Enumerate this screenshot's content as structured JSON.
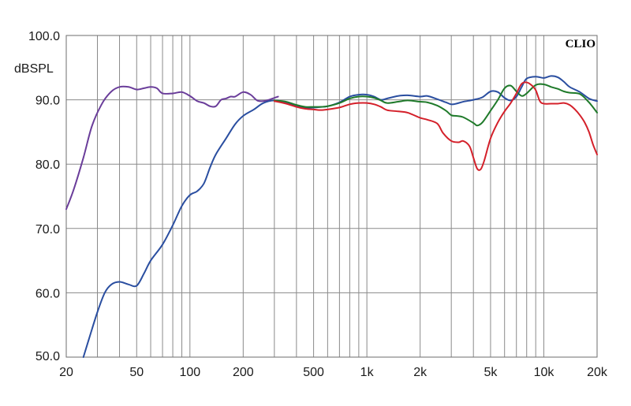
{
  "chart_data": {
    "type": "line",
    "brand": "CLIO",
    "ylabel": "dBSPL",
    "xlabel": "",
    "title": "",
    "x_scale": "log",
    "xlim": [
      20,
      20000
    ],
    "ylim": [
      50,
      100
    ],
    "grid": true,
    "x_ticks": [
      {
        "value": 20,
        "label": "20"
      },
      {
        "value": 50,
        "label": "50"
      },
      {
        "value": 100,
        "label": "100"
      },
      {
        "value": 200,
        "label": "200"
      },
      {
        "value": 500,
        "label": "500"
      },
      {
        "value": 1000,
        "label": "1k"
      },
      {
        "value": 2000,
        "label": "2k"
      },
      {
        "value": 5000,
        "label": "5k"
      },
      {
        "value": 10000,
        "label": "10k"
      },
      {
        "value": 20000,
        "label": "20k"
      }
    ],
    "y_ticks": [
      {
        "value": 50,
        "label": "50.0"
      },
      {
        "value": 60,
        "label": "60.0"
      },
      {
        "value": 70,
        "label": "70.0"
      },
      {
        "value": 80,
        "label": "80.0"
      },
      {
        "value": 90,
        "label": "90.0"
      },
      {
        "value": 100,
        "label": "100.0"
      }
    ],
    "series": [
      {
        "color": "#6a3d9a",
        "points": [
          [
            20,
            73
          ],
          [
            22,
            76
          ],
          [
            25,
            81
          ],
          [
            28,
            86
          ],
          [
            32,
            89.5
          ],
          [
            36,
            91.3
          ],
          [
            40,
            92
          ],
          [
            45,
            92
          ],
          [
            50,
            91.6
          ],
          [
            55,
            91.8
          ],
          [
            60,
            92
          ],
          [
            65,
            91.8
          ],
          [
            70,
            91
          ],
          [
            80,
            91
          ],
          [
            90,
            91.2
          ],
          [
            100,
            90.6
          ],
          [
            110,
            89.8
          ],
          [
            120,
            89.5
          ],
          [
            130,
            89
          ],
          [
            140,
            89
          ],
          [
            150,
            90
          ],
          [
            160,
            90.2
          ],
          [
            170,
            90.5
          ],
          [
            180,
            90.5
          ],
          [
            200,
            91.2
          ],
          [
            220,
            90.8
          ],
          [
            240,
            89.9
          ],
          [
            260,
            89.8
          ],
          [
            280,
            90
          ],
          [
            300,
            90.3
          ],
          [
            315,
            90.5
          ]
        ]
      },
      {
        "color": "#2a4ea0",
        "points": [
          [
            25,
            50
          ],
          [
            27,
            53
          ],
          [
            30,
            57
          ],
          [
            33,
            60
          ],
          [
            36,
            61.3
          ],
          [
            40,
            61.7
          ],
          [
            45,
            61.3
          ],
          [
            50,
            61.1
          ],
          [
            55,
            63
          ],
          [
            60,
            65
          ],
          [
            70,
            67.5
          ],
          [
            80,
            70.5
          ],
          [
            90,
            73.5
          ],
          [
            100,
            75.2
          ],
          [
            110,
            75.8
          ],
          [
            120,
            77
          ],
          [
            130,
            79.5
          ],
          [
            140,
            81.5
          ],
          [
            160,
            84
          ],
          [
            180,
            86.2
          ],
          [
            200,
            87.5
          ],
          [
            230,
            88.5
          ],
          [
            260,
            89.5
          ],
          [
            300,
            89.9
          ],
          [
            350,
            89.6
          ],
          [
            400,
            89.1
          ],
          [
            450,
            88.8
          ],
          [
            500,
            88.8
          ],
          [
            550,
            88.9
          ],
          [
            600,
            89
          ],
          [
            700,
            89.6
          ],
          [
            800,
            90.5
          ],
          [
            900,
            90.8
          ],
          [
            1000,
            90.8
          ],
          [
            1100,
            90.5
          ],
          [
            1200,
            90
          ],
          [
            1300,
            90.2
          ],
          [
            1500,
            90.6
          ],
          [
            1700,
            90.7
          ],
          [
            2000,
            90.5
          ],
          [
            2200,
            90.6
          ],
          [
            2500,
            90.1
          ],
          [
            2800,
            89.6
          ],
          [
            3000,
            89.3
          ],
          [
            3200,
            89.4
          ],
          [
            3500,
            89.7
          ],
          [
            4000,
            90
          ],
          [
            4500,
            90.4
          ],
          [
            5000,
            91.3
          ],
          [
            5500,
            91.2
          ],
          [
            6000,
            90.3
          ],
          [
            6500,
            89.9
          ],
          [
            7000,
            90.5
          ],
          [
            7500,
            92
          ],
          [
            8000,
            93.3
          ],
          [
            9000,
            93.6
          ],
          [
            10000,
            93.4
          ],
          [
            11000,
            93.7
          ],
          [
            12000,
            93.5
          ],
          [
            13000,
            92.8
          ],
          [
            14000,
            92
          ],
          [
            16000,
            91.2
          ],
          [
            18000,
            90.2
          ],
          [
            20000,
            89.8
          ]
        ]
      },
      {
        "color": "#1f7a2a",
        "points": [
          [
            300,
            89.9
          ],
          [
            350,
            89.7
          ],
          [
            400,
            89.2
          ],
          [
            450,
            88.9
          ],
          [
            500,
            88.9
          ],
          [
            550,
            88.9
          ],
          [
            600,
            89
          ],
          [
            700,
            89.5
          ],
          [
            800,
            90.2
          ],
          [
            900,
            90.5
          ],
          [
            1000,
            90.5
          ],
          [
            1100,
            90.3
          ],
          [
            1200,
            89.9
          ],
          [
            1300,
            89.5
          ],
          [
            1500,
            89.7
          ],
          [
            1700,
            89.9
          ],
          [
            2000,
            89.7
          ],
          [
            2200,
            89.6
          ],
          [
            2500,
            89.1
          ],
          [
            2800,
            88.3
          ],
          [
            3000,
            87.6
          ],
          [
            3200,
            87.5
          ],
          [
            3500,
            87.3
          ],
          [
            4000,
            86.4
          ],
          [
            4200,
            86
          ],
          [
            4500,
            86.5
          ],
          [
            5000,
            88.3
          ],
          [
            5500,
            90
          ],
          [
            6000,
            91.8
          ],
          [
            6500,
            92.2
          ],
          [
            7000,
            91.3
          ],
          [
            7500,
            90.6
          ],
          [
            8000,
            91
          ],
          [
            9000,
            92.3
          ],
          [
            10000,
            92.4
          ],
          [
            11000,
            92
          ],
          [
            12000,
            91.7
          ],
          [
            13000,
            91.3
          ],
          [
            14000,
            91.1
          ],
          [
            16000,
            90.9
          ],
          [
            18000,
            89.6
          ],
          [
            20000,
            88
          ]
        ]
      },
      {
        "color": "#d4202a",
        "points": [
          [
            300,
            89.8
          ],
          [
            350,
            89.4
          ],
          [
            400,
            88.9
          ],
          [
            450,
            88.6
          ],
          [
            500,
            88.5
          ],
          [
            550,
            88.4
          ],
          [
            600,
            88.5
          ],
          [
            700,
            88.8
          ],
          [
            800,
            89.3
          ],
          [
            900,
            89.5
          ],
          [
            1000,
            89.5
          ],
          [
            1100,
            89.3
          ],
          [
            1200,
            88.9
          ],
          [
            1300,
            88.4
          ],
          [
            1500,
            88.2
          ],
          [
            1700,
            88
          ],
          [
            2000,
            87.2
          ],
          [
            2200,
            86.9
          ],
          [
            2500,
            86.3
          ],
          [
            2700,
            84.8
          ],
          [
            3000,
            83.6
          ],
          [
            3300,
            83.4
          ],
          [
            3500,
            83.6
          ],
          [
            3800,
            82.8
          ],
          [
            4000,
            81
          ],
          [
            4200,
            79.3
          ],
          [
            4400,
            79.2
          ],
          [
            4600,
            80.5
          ],
          [
            5000,
            84
          ],
          [
            5500,
            86.5
          ],
          [
            6000,
            88.2
          ],
          [
            6500,
            89.5
          ],
          [
            7000,
            91
          ],
          [
            7500,
            92.5
          ],
          [
            8000,
            92.7
          ],
          [
            8500,
            92.3
          ],
          [
            9000,
            91.5
          ],
          [
            9500,
            89.8
          ],
          [
            10000,
            89.4
          ],
          [
            11000,
            89.4
          ],
          [
            12000,
            89.4
          ],
          [
            13000,
            89.5
          ],
          [
            14000,
            89.2
          ],
          [
            15000,
            88.5
          ],
          [
            16000,
            87.6
          ],
          [
            17000,
            86.5
          ],
          [
            18000,
            85
          ],
          [
            19000,
            83
          ],
          [
            20000,
            81.5
          ]
        ]
      }
    ]
  }
}
